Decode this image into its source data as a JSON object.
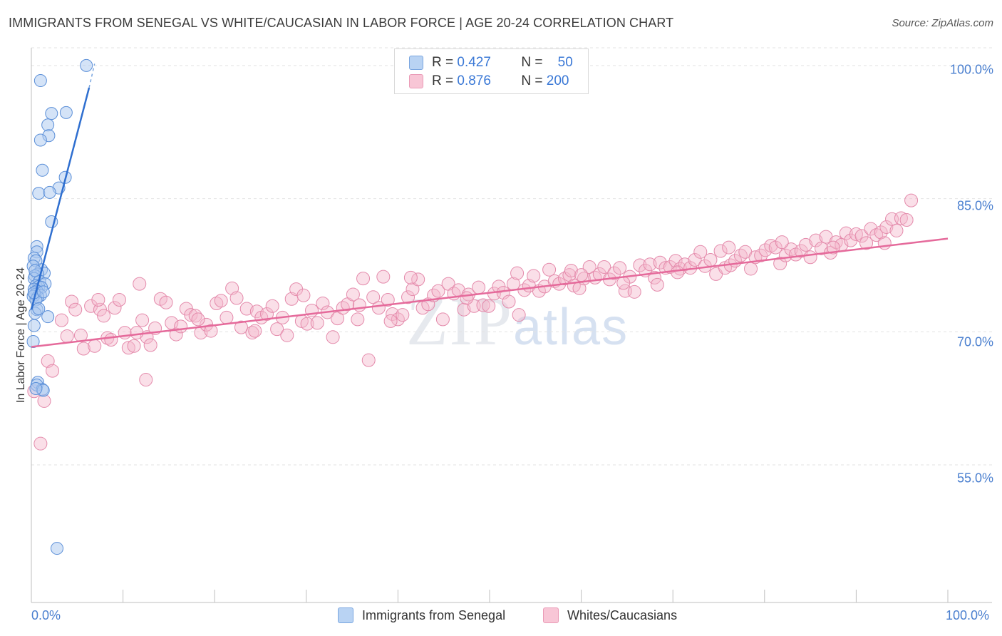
{
  "title": "IMMIGRANTS FROM SENEGAL VS WHITE/CAUCASIAN IN LABOR FORCE | AGE 20-24 CORRELATION CHART",
  "source": "Source: ZipAtlas.com",
  "watermark": {
    "zip": "ZIP",
    "atlas": "atlas"
  },
  "legend": {
    "rows": [
      {
        "r_label": "R =",
        "r_value": "0.427",
        "n_label": "N =",
        "n_value": "50"
      },
      {
        "r_label": "R =",
        "r_value": "0.876",
        "n_label": "N =",
        "n_value": "200"
      }
    ]
  },
  "bottom_legend": {
    "series1": "Immigrants from Senegal",
    "series2": "Whites/Caucasians"
  },
  "colors": {
    "blue": "#4a86d8",
    "blue_fill": "#a9c8f0",
    "pink": "#e56a9b",
    "pink_fill": "#f5b8cd",
    "tick_text": "#4a7fcf"
  },
  "chart_data": {
    "type": "scatter",
    "title": "IMMIGRANTS FROM SENEGAL VS WHITE/CAUCASIAN IN LABOR FORCE | AGE 20-24 CORRELATION CHART",
    "xlabel": "",
    "ylabel": "In Labor Force | Age 20-24",
    "xlim": [
      0,
      100
    ],
    "ylim": [
      39.5,
      102
    ],
    "x_tick_labels": [
      "0.0%",
      "100.0%"
    ],
    "y_ticks": [
      100,
      85,
      70,
      55
    ],
    "y_tick_labels": [
      "100.0%",
      "85.0%",
      "70.0%",
      "55.0%"
    ],
    "series": [
      {
        "name": "Immigrants from Senegal",
        "r": 0.427,
        "n": 50,
        "trend": {
          "x0": 0,
          "y0": 72.5,
          "x1": 6.3,
          "y1": 97.5,
          "dash_to_x": 6.9,
          "dash_to_y": 100.2
        },
        "points": [
          [
            6.0,
            100.0
          ],
          [
            1.0,
            98.3
          ],
          [
            3.8,
            94.7
          ],
          [
            2.2,
            94.6
          ],
          [
            1.8,
            93.3
          ],
          [
            1.9,
            92.1
          ],
          [
            1.0,
            91.6
          ],
          [
            1.2,
            88.2
          ],
          [
            3.7,
            87.4
          ],
          [
            3.0,
            86.2
          ],
          [
            0.8,
            85.6
          ],
          [
            2.0,
            85.7
          ],
          [
            2.2,
            82.4
          ],
          [
            0.6,
            79.6
          ],
          [
            0.6,
            79.0
          ],
          [
            0.3,
            78.3
          ],
          [
            0.5,
            78.0
          ],
          [
            0.2,
            77.4
          ],
          [
            1.1,
            77.0
          ],
          [
            1.4,
            76.6
          ],
          [
            0.7,
            76.5
          ],
          [
            0.4,
            76.3
          ],
          [
            0.3,
            76.0
          ],
          [
            0.9,
            75.7
          ],
          [
            1.5,
            75.4
          ],
          [
            0.5,
            75.2
          ],
          [
            0.8,
            75.1
          ],
          [
            1.1,
            75.0
          ],
          [
            0.3,
            74.8
          ],
          [
            0.6,
            74.6
          ],
          [
            0.4,
            74.2
          ],
          [
            1.0,
            74.1
          ],
          [
            0.2,
            74.0
          ],
          [
            0.7,
            73.9
          ],
          [
            0.5,
            73.6
          ],
          [
            0.6,
            72.5
          ],
          [
            0.4,
            72.1
          ],
          [
            1.8,
            71.7
          ],
          [
            0.3,
            70.7
          ],
          [
            0.2,
            68.9
          ],
          [
            0.7,
            64.3
          ],
          [
            0.6,
            64.0
          ],
          [
            1.2,
            63.5
          ],
          [
            1.3,
            63.4
          ],
          [
            0.5,
            63.6
          ],
          [
            2.8,
            45.6
          ],
          [
            0.3,
            74.4
          ],
          [
            0.8,
            72.6
          ],
          [
            0.4,
            76.9
          ],
          [
            1.3,
            74.5
          ]
        ]
      },
      {
        "name": "Whites/Caucasians",
        "r": 0.876,
        "n": 200,
        "trend": {
          "x0": 0,
          "y0": 68.3,
          "x1": 100,
          "y1": 80.5
        },
        "points": [
          [
            0.3,
            63.3
          ],
          [
            1.4,
            62.2
          ],
          [
            1.0,
            57.4
          ],
          [
            1.8,
            66.7
          ],
          [
            2.3,
            65.6
          ],
          [
            3.3,
            71.3
          ],
          [
            3.9,
            69.5
          ],
          [
            4.4,
            73.4
          ],
          [
            4.8,
            72.5
          ],
          [
            5.4,
            69.6
          ],
          [
            5.7,
            68.1
          ],
          [
            6.5,
            72.9
          ],
          [
            6.9,
            68.4
          ],
          [
            7.5,
            72.5
          ],
          [
            7.9,
            71.8
          ],
          [
            8.3,
            69.3
          ],
          [
            8.7,
            69.1
          ],
          [
            9.1,
            72.7
          ],
          [
            9.6,
            73.6
          ],
          [
            10.2,
            69.9
          ],
          [
            10.6,
            68.2
          ],
          [
            11.2,
            68.4
          ],
          [
            11.8,
            75.4
          ],
          [
            12.1,
            71.3
          ],
          [
            12.6,
            69.4
          ],
          [
            13.0,
            68.5
          ],
          [
            13.5,
            70.4
          ],
          [
            14.1,
            73.7
          ],
          [
            14.7,
            73.3
          ],
          [
            15.3,
            71.0
          ],
          [
            15.8,
            69.7
          ],
          [
            16.3,
            70.6
          ],
          [
            16.9,
            72.6
          ],
          [
            17.4,
            71.9
          ],
          [
            17.9,
            71.8
          ],
          [
            18.5,
            69.9
          ],
          [
            19.1,
            70.8
          ],
          [
            19.6,
            70.1
          ],
          [
            20.2,
            73.2
          ],
          [
            20.7,
            73.5
          ],
          [
            21.3,
            71.6
          ],
          [
            21.9,
            74.9
          ],
          [
            22.4,
            73.8
          ],
          [
            22.9,
            70.5
          ],
          [
            23.5,
            72.6
          ],
          [
            24.1,
            69.9
          ],
          [
            24.6,
            72.3
          ],
          [
            25.1,
            71.6
          ],
          [
            25.7,
            72.0
          ],
          [
            26.3,
            72.9
          ],
          [
            26.8,
            70.3
          ],
          [
            27.4,
            71.6
          ],
          [
            27.9,
            69.6
          ],
          [
            28.4,
            73.7
          ],
          [
            28.9,
            74.8
          ],
          [
            29.5,
            71.2
          ],
          [
            30.1,
            70.9
          ],
          [
            30.6,
            72.4
          ],
          [
            31.2,
            71.0
          ],
          [
            31.8,
            73.2
          ],
          [
            32.3,
            72.2
          ],
          [
            32.9,
            69.4
          ],
          [
            33.4,
            71.5
          ],
          [
            34.0,
            72.7
          ],
          [
            34.5,
            73.1
          ],
          [
            35.1,
            74.2
          ],
          [
            35.6,
            71.4
          ],
          [
            36.2,
            76.0
          ],
          [
            36.8,
            66.8
          ],
          [
            37.3,
            73.9
          ],
          [
            37.9,
            72.7
          ],
          [
            38.4,
            76.2
          ],
          [
            38.9,
            73.6
          ],
          [
            39.4,
            72.0
          ],
          [
            40.0,
            71.4
          ],
          [
            40.5,
            71.9
          ],
          [
            41.1,
            73.9
          ],
          [
            41.6,
            74.8
          ],
          [
            42.2,
            75.9
          ],
          [
            42.7,
            72.7
          ],
          [
            43.3,
            73.1
          ],
          [
            43.9,
            74.1
          ],
          [
            44.4,
            74.6
          ],
          [
            44.9,
            71.4
          ],
          [
            45.5,
            75.4
          ],
          [
            46.1,
            74.3
          ],
          [
            46.6,
            74.7
          ],
          [
            47.2,
            72.5
          ],
          [
            47.7,
            74.2
          ],
          [
            48.3,
            72.9
          ],
          [
            48.8,
            75.0
          ],
          [
            49.3,
            73.0
          ],
          [
            49.9,
            72.9
          ],
          [
            50.5,
            74.3
          ],
          [
            51.0,
            75.1
          ],
          [
            51.5,
            74.4
          ],
          [
            52.1,
            73.4
          ],
          [
            52.6,
            75.4
          ],
          [
            53.2,
            71.9
          ],
          [
            53.8,
            74.7
          ],
          [
            54.3,
            75.2
          ],
          [
            54.8,
            76.3
          ],
          [
            55.4,
            74.6
          ],
          [
            56.0,
            75.1
          ],
          [
            56.5,
            77.0
          ],
          [
            57.1,
            75.7
          ],
          [
            57.6,
            75.4
          ],
          [
            58.2,
            76.0
          ],
          [
            58.7,
            76.4
          ],
          [
            59.2,
            75.2
          ],
          [
            59.8,
            74.9
          ],
          [
            60.3,
            76.0
          ],
          [
            60.9,
            77.3
          ],
          [
            61.5,
            76.1
          ],
          [
            62.0,
            76.5
          ],
          [
            62.5,
            77.3
          ],
          [
            63.1,
            75.9
          ],
          [
            63.6,
            76.6
          ],
          [
            64.2,
            77.2
          ],
          [
            64.8,
            74.6
          ],
          [
            65.3,
            76.2
          ],
          [
            65.8,
            74.5
          ],
          [
            66.4,
            77.5
          ],
          [
            67.0,
            76.9
          ],
          [
            67.5,
            77.6
          ],
          [
            68.0,
            76.1
          ],
          [
            68.6,
            77.8
          ],
          [
            69.2,
            77.2
          ],
          [
            69.7,
            77.3
          ],
          [
            70.3,
            78.0
          ],
          [
            70.8,
            77.1
          ],
          [
            71.3,
            77.6
          ],
          [
            71.9,
            77.2
          ],
          [
            72.4,
            78.1
          ],
          [
            73.0,
            79.0
          ],
          [
            73.5,
            77.4
          ],
          [
            74.1,
            78.1
          ],
          [
            74.7,
            76.5
          ],
          [
            75.2,
            79.1
          ],
          [
            75.7,
            77.2
          ],
          [
            76.3,
            77.5
          ],
          [
            76.8,
            78.0
          ],
          [
            77.4,
            78.6
          ],
          [
            77.9,
            79.0
          ],
          [
            78.5,
            77.1
          ],
          [
            79.0,
            78.4
          ],
          [
            79.6,
            78.6
          ],
          [
            80.1,
            79.2
          ],
          [
            80.7,
            79.7
          ],
          [
            81.2,
            79.5
          ],
          [
            81.7,
            77.7
          ],
          [
            82.3,
            78.6
          ],
          [
            82.9,
            79.3
          ],
          [
            83.4,
            78.7
          ],
          [
            84.0,
            79.1
          ],
          [
            84.5,
            79.8
          ],
          [
            85.0,
            78.4
          ],
          [
            85.6,
            80.3
          ],
          [
            86.2,
            79.4
          ],
          [
            86.7,
            80.7
          ],
          [
            87.2,
            78.9
          ],
          [
            87.8,
            80.1
          ],
          [
            88.4,
            79.8
          ],
          [
            88.9,
            81.1
          ],
          [
            89.4,
            80.3
          ],
          [
            90.0,
            81.0
          ],
          [
            90.6,
            80.8
          ],
          [
            91.1,
            80.0
          ],
          [
            91.6,
            81.6
          ],
          [
            92.2,
            80.9
          ],
          [
            92.7,
            81.2
          ],
          [
            93.3,
            81.8
          ],
          [
            93.9,
            82.7
          ],
          [
            94.4,
            81.4
          ],
          [
            94.9,
            82.8
          ],
          [
            95.5,
            82.6
          ],
          [
            96.0,
            84.8
          ],
          [
            7.3,
            73.6
          ],
          [
            11.5,
            69.9
          ],
          [
            18.2,
            71.4
          ],
          [
            24.4,
            70.1
          ],
          [
            29.7,
            74.1
          ],
          [
            35.8,
            73.0
          ],
          [
            41.4,
            76.1
          ],
          [
            47.5,
            73.8
          ],
          [
            53.0,
            76.6
          ],
          [
            58.9,
            76.9
          ],
          [
            64.6,
            75.5
          ],
          [
            70.5,
            76.7
          ],
          [
            76.1,
            79.5
          ],
          [
            81.9,
            80.1
          ],
          [
            87.5,
            79.5
          ],
          [
            93.1,
            80.0
          ],
          [
            39.2,
            71.2
          ],
          [
            60.0,
            76.4
          ],
          [
            68.3,
            75.3
          ],
          [
            12.5,
            64.6
          ]
        ]
      }
    ]
  }
}
